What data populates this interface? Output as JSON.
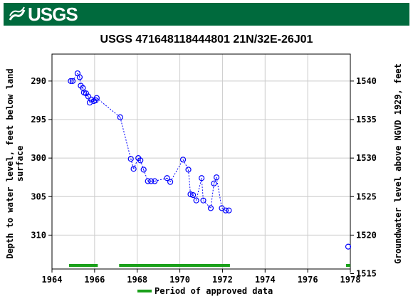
{
  "header": {
    "logo_text": "USGS"
  },
  "chart_data": {
    "type": "scatter",
    "title": "USGS 471648118444801 21N/32E-26J01",
    "ylabel_left_line1": "Depth to water level, feet below land",
    "ylabel_left_line2": "surface",
    "ylabel_right": "Groundwater level above NGVD 1929, feet",
    "xlim": [
      1964,
      1978
    ],
    "ylim_left": [
      314.4,
      286.5
    ],
    "ylim_right": [
      1515.6,
      1543.5
    ],
    "xticks": [
      1964,
      1966,
      1968,
      1970,
      1972,
      1974,
      1976,
      1978
    ],
    "yticks_left": [
      290,
      295,
      300,
      305,
      310
    ],
    "yticks_right": [
      1540,
      1535,
      1530,
      1525,
      1520,
      1515
    ],
    "grid": true,
    "series": [
      {
        "style": "dotted line with open circle markers",
        "color": "#0000ff",
        "points": [
          [
            1964.88,
            290.0
          ],
          [
            1964.97,
            290.0
          ],
          [
            1965.2,
            289.0
          ],
          [
            1965.3,
            289.5
          ],
          [
            1965.35,
            290.6
          ],
          [
            1965.45,
            290.9
          ],
          [
            1965.5,
            291.5
          ],
          [
            1965.6,
            291.6
          ],
          [
            1965.7,
            292.0
          ],
          [
            1965.77,
            292.8
          ],
          [
            1965.85,
            292.4
          ],
          [
            1965.97,
            292.6
          ],
          [
            1966.05,
            292.5
          ],
          [
            1966.1,
            292.2
          ],
          [
            1967.2,
            294.7
          ],
          [
            1967.7,
            300.1
          ],
          [
            1967.83,
            301.4
          ],
          [
            1968.05,
            300.0
          ],
          [
            1968.15,
            300.3
          ],
          [
            1968.3,
            301.5
          ],
          [
            1968.5,
            303.0
          ],
          [
            1968.65,
            303.0
          ],
          [
            1968.82,
            303.0
          ],
          [
            1969.4,
            302.6
          ],
          [
            1969.55,
            303.1
          ],
          [
            1970.15,
            300.2
          ],
          [
            1970.4,
            301.5
          ],
          [
            1970.5,
            304.7
          ],
          [
            1970.62,
            304.8
          ],
          [
            1970.77,
            305.5
          ],
          [
            1971.02,
            302.6
          ],
          [
            1971.1,
            305.5
          ],
          [
            1971.45,
            306.5
          ],
          [
            1971.6,
            303.3
          ],
          [
            1971.72,
            302.5
          ],
          [
            1971.97,
            306.5
          ],
          [
            1972.15,
            306.8
          ],
          [
            1972.3,
            306.8
          ],
          [
            1977.9,
            311.5
          ]
        ]
      }
    ],
    "approved_periods": [
      [
        1964.8,
        1966.15
      ],
      [
        1967.15,
        1972.35
      ],
      [
        1977.8,
        1978.0
      ]
    ],
    "approved_color": "#1aa01a",
    "legend": {
      "label": "Period of approved data",
      "placement": "bottom-center"
    }
  }
}
